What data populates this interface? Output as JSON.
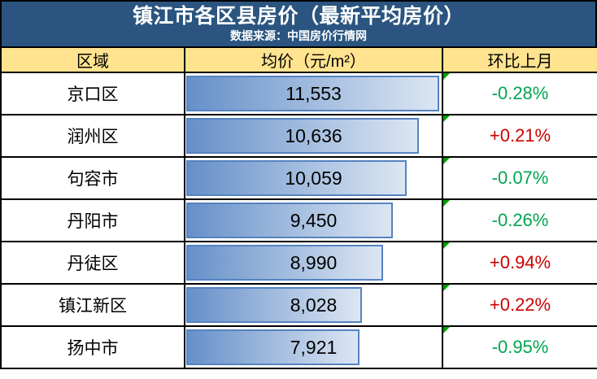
{
  "header": {
    "title": "镇江市各区县房价（最新平均房价）",
    "subtitle": "数据来源：中国房价行情网"
  },
  "table": {
    "columns": [
      "区域",
      "均价（元/m²）",
      "环比上月"
    ],
    "bar_max": 11553,
    "rows": [
      {
        "region": "京口区",
        "price": 11553,
        "price_display": "11,553",
        "change": "-0.28%"
      },
      {
        "region": "润州区",
        "price": 10636,
        "price_display": "10,636",
        "change": "+0.21%"
      },
      {
        "region": "句容市",
        "price": 10059,
        "price_display": "10,059",
        "change": "-0.07%"
      },
      {
        "region": "丹阳市",
        "price": 9450,
        "price_display": "9,450",
        "change": "-0.26%"
      },
      {
        "region": "丹徒区",
        "price": 8990,
        "price_display": "8,990",
        "change": "+0.94%"
      },
      {
        "region": "镇江新区",
        "price": 8028,
        "price_display": "8,028",
        "change": "+0.22%"
      },
      {
        "region": "扬中市",
        "price": 7921,
        "price_display": "7,921",
        "change": "-0.95%"
      }
    ]
  },
  "colors": {
    "header_bg": "#2B5580",
    "column_header_bg": "#FFE38F",
    "bar_gradient_start": "#6690C9",
    "bar_gradient_end": "#DCE6F3",
    "bar_border": "#5583C0",
    "positive_change": "#CC0000",
    "negative_change": "#00A550",
    "cell_flag": "#00A000"
  },
  "chart_data": {
    "type": "bar",
    "title": "镇江市各区县房价（最新平均房价）",
    "subtitle": "数据来源：中国房价行情网",
    "categories": [
      "京口区",
      "润州区",
      "句容市",
      "丹阳市",
      "丹徒区",
      "镇江新区",
      "扬中市"
    ],
    "series": [
      {
        "name": "均价（元/m²）",
        "values": [
          11553,
          10636,
          10059,
          9450,
          8990,
          8028,
          7921
        ]
      },
      {
        "name": "环比上月",
        "values": [
          "-0.28%",
          "+0.21%",
          "-0.07%",
          "-0.26%",
          "+0.94%",
          "+0.22%",
          "-0.95%"
        ]
      }
    ],
    "xlim": [
      0,
      11553
    ],
    "orientation": "horizontal",
    "grid": false,
    "legend": false
  }
}
